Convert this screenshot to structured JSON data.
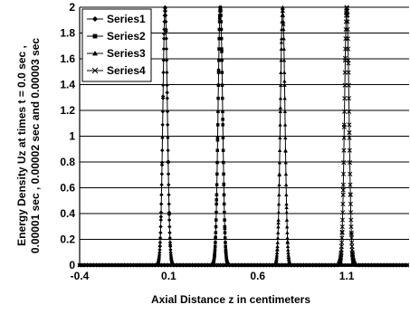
{
  "chart_data": {
    "type": "line",
    "xlabel": "Axial Distance  z in centimeters",
    "ylabel_lines": [
      "Energy Density Uz at times t = 0.0 sec ,",
      "0.00001 sec , 0.00002 sec and 0.00003 sec"
    ],
    "xlim": [
      -0.4,
      1.45
    ],
    "ylim": [
      0,
      2
    ],
    "x_ticks": [
      -0.4,
      0.1,
      0.6,
      1.1
    ],
    "x_tick_labels": [
      "-0.4",
      "0.1",
      "0.6",
      "1.1"
    ],
    "y_ticks": [
      0,
      0.2,
      0.4,
      0.6,
      0.8,
      1,
      1.2,
      1.4,
      1.6,
      1.8,
      2
    ],
    "y_tick_labels": [
      "0",
      "0.2",
      "0.4",
      "0.6",
      "0.8",
      "1",
      "1.2",
      "1.4",
      "1.6",
      "1.8",
      "2"
    ],
    "grid": "horizontal",
    "legend": "top-left",
    "series": [
      {
        "name": "Series1",
        "marker": "diamond",
        "peak_x": 0.08,
        "peak_y": 2,
        "width": 0.018
      },
      {
        "name": "Series2",
        "marker": "square",
        "peak_x": 0.39,
        "peak_y": 2,
        "width": 0.018
      },
      {
        "name": "Series3",
        "marker": "triangle",
        "peak_x": 0.74,
        "peak_y": 2,
        "width": 0.018
      },
      {
        "name": "Series4",
        "marker": "x",
        "peak_x": 1.1,
        "peak_y": 2,
        "width": 0.018
      }
    ]
  }
}
